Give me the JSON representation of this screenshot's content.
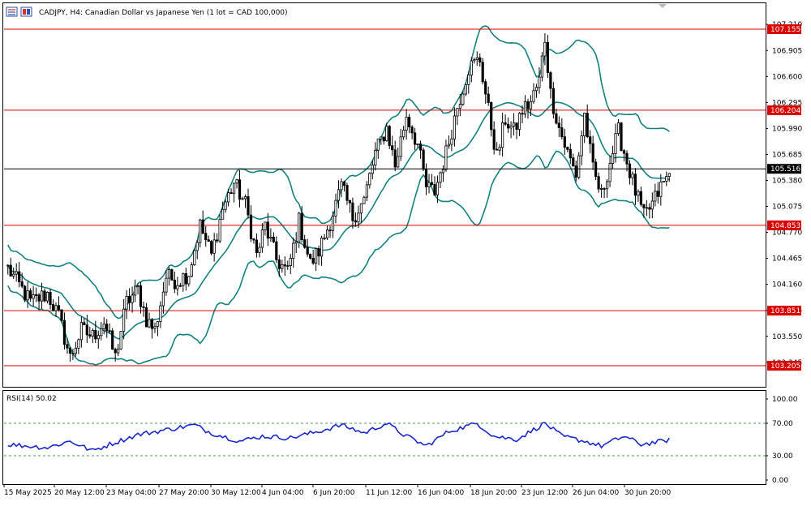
{
  "header": {
    "title": "CADJPY, H4:  Canadian Dollar vs Japanese Yen (1 lot = CAD 100,000)"
  },
  "colors": {
    "bull_candle": "#000000",
    "bear_candle": "#000000",
    "bollinger": "#138280",
    "level_line": "#d90000",
    "level_tag_bg": "#d90000",
    "current_price_line": "#000000",
    "current_price_tag_bg": "#000000",
    "rsi_line": "#1c28c8",
    "rsi_levels": "#1a7a2a"
  },
  "chart_data": [
    {
      "type": "candlestick",
      "symbol": "CADJPY",
      "timeframe": "H4",
      "y_ticks": [
        "107.210",
        "106.905",
        "106.600",
        "106.295",
        "105.990",
        "105.685",
        "105.380",
        "105.075",
        "104.770",
        "104.465",
        "104.160",
        "103.855",
        "103.550",
        "103.245"
      ],
      "ylim": [
        103.0,
        107.45
      ],
      "x_ticks": [
        "15 May 2025",
        "20 May 12:00",
        "23 May 04:00",
        "27 May 20:00",
        "30 May 12:00",
        "4 Jun 04:00",
        "6 Jun 20:00",
        "11 Jun 12:00",
        "16 Jun 04:00",
        "18 Jun 20:00",
        "23 Jun 12:00",
        "26 Jun 04:00",
        "30 Jun 20:00"
      ],
      "horizontal_levels": [
        "107.155",
        "106.204",
        "104.853",
        "103.851",
        "103.205"
      ],
      "current_price": "105.516",
      "overlays": [
        "Bollinger Bands (upper, middle, lower)"
      ],
      "close_path": [
        [
          0,
          104.35
        ],
        [
          8,
          103.95
        ],
        [
          14,
          104.05
        ],
        [
          18,
          103.78
        ],
        [
          22,
          103.3
        ],
        [
          26,
          103.62
        ],
        [
          30,
          103.55
        ],
        [
          34,
          103.72
        ],
        [
          38,
          103.3
        ],
        [
          42,
          103.95
        ],
        [
          46,
          104.1
        ],
        [
          49,
          103.75
        ],
        [
          52,
          103.62
        ],
        [
          56,
          104.25
        ],
        [
          60,
          104.2
        ],
        [
          64,
          104.3
        ],
        [
          68,
          104.85
        ],
        [
          72,
          104.5
        ],
        [
          76,
          105.05
        ],
        [
          80,
          105.35
        ],
        [
          84,
          105.1
        ],
        [
          88,
          104.5
        ],
        [
          91,
          104.85
        ],
        [
          95,
          104.45
        ],
        [
          99,
          104.3
        ],
        [
          103,
          104.9
        ],
        [
          107,
          104.4
        ],
        [
          110,
          104.55
        ],
        [
          114,
          104.9
        ],
        [
          118,
          105.3
        ],
        [
          122,
          104.95
        ],
        [
          126,
          105.15
        ],
        [
          130,
          105.7
        ],
        [
          134,
          106.0
        ],
        [
          137,
          105.55
        ],
        [
          141,
          106.15
        ],
        [
          145,
          105.8
        ],
        [
          148,
          105.3
        ],
        [
          151,
          105.25
        ],
        [
          155,
          105.7
        ],
        [
          159,
          106.25
        ],
        [
          163,
          106.7
        ],
        [
          167,
          106.8
        ],
        [
          170,
          106.2
        ],
        [
          173,
          105.65
        ],
        [
          176,
          106.1
        ],
        [
          179,
          105.95
        ],
        [
          182,
          106.2
        ],
        [
          185,
          106.3
        ],
        [
          188,
          106.55
        ],
        [
          190,
          107.05
        ],
        [
          192,
          106.4
        ],
        [
          195,
          106.0
        ],
        [
          198,
          105.7
        ],
        [
          201,
          105.45
        ],
        [
          204,
          106.15
        ],
        [
          207,
          105.5
        ],
        [
          210,
          105.2
        ],
        [
          213,
          105.6
        ],
        [
          216,
          105.95
        ],
        [
          219,
          105.6
        ],
        [
          222,
          105.25
        ],
        [
          225,
          104.95
        ],
        [
          228,
          105.1
        ],
        [
          231,
          105.3
        ],
        [
          234,
          105.45
        ]
      ],
      "rsi_series": [
        [
          0,
          44
        ],
        [
          14,
          40
        ],
        [
          22,
          48
        ],
        [
          30,
          36
        ],
        [
          36,
          44
        ],
        [
          46,
          56
        ],
        [
          56,
          62
        ],
        [
          66,
          68
        ],
        [
          72,
          58
        ],
        [
          82,
          48
        ],
        [
          90,
          54
        ],
        [
          100,
          52
        ],
        [
          110,
          60
        ],
        [
          118,
          68
        ],
        [
          126,
          58
        ],
        [
          134,
          70
        ],
        [
          140,
          56
        ],
        [
          148,
          42
        ],
        [
          156,
          60
        ],
        [
          162,
          66
        ],
        [
          166,
          70
        ],
        [
          172,
          54
        ],
        [
          180,
          50
        ],
        [
          190,
          70
        ],
        [
          196,
          54
        ],
        [
          204,
          48
        ],
        [
          210,
          42
        ],
        [
          218,
          54
        ],
        [
          224,
          44
        ],
        [
          232,
          48
        ],
        [
          234,
          50
        ]
      ]
    },
    {
      "type": "line",
      "indicator": "RSI(14)",
      "title": "RSI(14) 50.02",
      "y_ticks": [
        "100.00",
        "70.00",
        "30.00",
        "0.00"
      ],
      "ylim": [
        0,
        100
      ],
      "levels": [
        70,
        30
      ]
    }
  ]
}
